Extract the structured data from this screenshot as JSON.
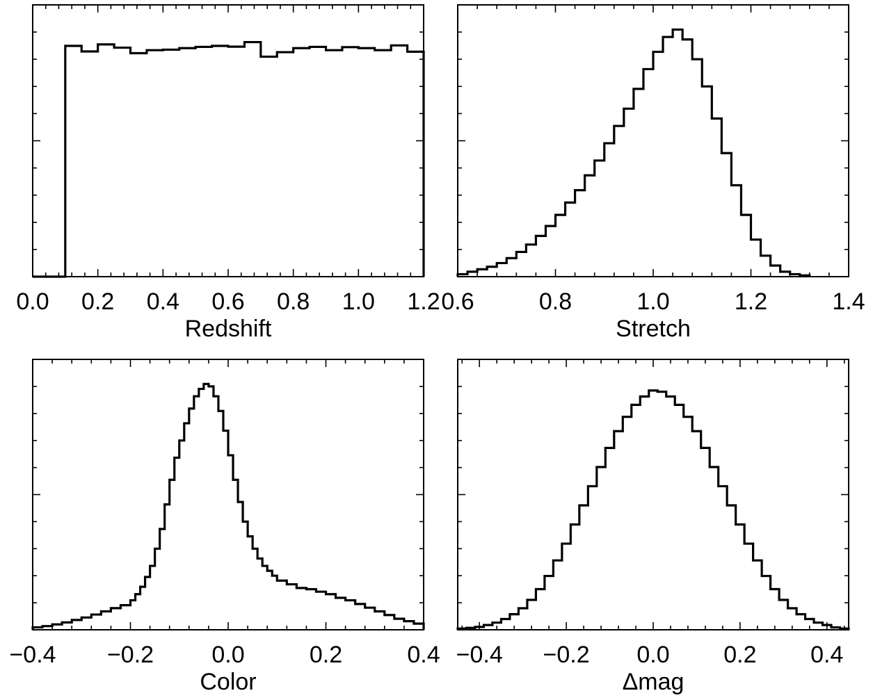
{
  "chart_data": [
    {
      "type": "histogram",
      "xlabel": "Redshift",
      "ylabel": "",
      "xlim": [
        0.0,
        1.2
      ],
      "xticks": [
        0.0,
        0.2,
        0.4,
        0.6,
        0.8,
        1.0,
        1.2
      ],
      "xtick_labels": [
        "0.0",
        "0.2",
        "0.4",
        "0.6",
        "0.8",
        "1.0",
        "1.2"
      ],
      "y_ticklabels_shown": false,
      "x_edges": [
        0.0,
        0.1,
        0.15,
        0.2,
        0.25,
        0.3,
        0.35,
        0.4,
        0.45,
        0.5,
        0.55,
        0.6,
        0.65,
        0.7,
        0.75,
        0.8,
        0.85,
        0.9,
        0.95,
        1.0,
        1.05,
        1.1,
        1.15,
        1.2
      ],
      "values": [
        0,
        0.917,
        0.895,
        0.923,
        0.91,
        0.888,
        0.9,
        0.902,
        0.908,
        0.913,
        0.917,
        0.914,
        0.932,
        0.874,
        0.892,
        0.908,
        0.913,
        0.9,
        0.912,
        0.908,
        0.9,
        0.919,
        0.894
      ]
    },
    {
      "type": "histogram",
      "xlabel": "Stretch",
      "ylabel": "",
      "xlim": [
        0.6,
        1.4
      ],
      "xticks": [
        0.6,
        0.8,
        1.0,
        1.2,
        1.4
      ],
      "xtick_labels": [
        "0.6",
        "0.8",
        "1.0",
        "1.2",
        "1.4"
      ],
      "y_ticklabels_shown": false,
      "x_edges": [
        0.6,
        0.62,
        0.64,
        0.66,
        0.68,
        0.7,
        0.72,
        0.74,
        0.76,
        0.78,
        0.8,
        0.82,
        0.84,
        0.86,
        0.88,
        0.9,
        0.92,
        0.94,
        0.96,
        0.98,
        1.0,
        1.02,
        1.04,
        1.06,
        1.08,
        1.1,
        1.12,
        1.14,
        1.16,
        1.18,
        1.2,
        1.22,
        1.24,
        1.26,
        1.28,
        1.3,
        1.32
      ],
      "values": [
        0.01,
        0.02,
        0.03,
        0.04,
        0.055,
        0.075,
        0.1,
        0.13,
        0.165,
        0.205,
        0.25,
        0.3,
        0.35,
        0.41,
        0.47,
        0.54,
        0.61,
        0.68,
        0.76,
        0.84,
        0.91,
        0.97,
        1.0,
        0.96,
        0.88,
        0.77,
        0.64,
        0.5,
        0.37,
        0.25,
        0.15,
        0.085,
        0.045,
        0.02,
        0.01,
        0.005
      ]
    },
    {
      "type": "histogram",
      "xlabel": "Color",
      "ylabel": "",
      "xlim": [
        -0.4,
        0.4
      ],
      "xticks": [
        -0.4,
        -0.2,
        0.0,
        0.2,
        0.4
      ],
      "xtick_labels": [
        "−0.4",
        "−0.2",
        "0.0",
        "0.2",
        "0.4"
      ],
      "y_ticklabels_shown": false,
      "x_edges": [
        -0.4,
        -0.38,
        -0.36,
        -0.34,
        -0.32,
        -0.3,
        -0.28,
        -0.26,
        -0.24,
        -0.22,
        -0.2,
        -0.19,
        -0.18,
        -0.17,
        -0.16,
        -0.15,
        -0.14,
        -0.13,
        -0.12,
        -0.11,
        -0.1,
        -0.09,
        -0.08,
        -0.07,
        -0.06,
        -0.05,
        -0.04,
        -0.03,
        -0.02,
        -0.01,
        0.0,
        0.01,
        0.02,
        0.03,
        0.04,
        0.05,
        0.06,
        0.07,
        0.08,
        0.09,
        0.1,
        0.12,
        0.14,
        0.16,
        0.18,
        0.2,
        0.22,
        0.24,
        0.26,
        0.28,
        0.3,
        0.32,
        0.34,
        0.36,
        0.38,
        0.4
      ],
      "values": [
        0.01,
        0.015,
        0.022,
        0.03,
        0.04,
        0.05,
        0.062,
        0.075,
        0.088,
        0.1,
        0.12,
        0.145,
        0.175,
        0.215,
        0.26,
        0.33,
        0.41,
        0.51,
        0.61,
        0.7,
        0.77,
        0.84,
        0.9,
        0.95,
        0.98,
        1.0,
        0.99,
        0.95,
        0.89,
        0.81,
        0.71,
        0.61,
        0.52,
        0.44,
        0.38,
        0.33,
        0.29,
        0.26,
        0.24,
        0.22,
        0.2,
        0.185,
        0.17,
        0.165,
        0.155,
        0.145,
        0.13,
        0.12,
        0.105,
        0.09,
        0.075,
        0.06,
        0.045,
        0.035,
        0.025
      ]
    },
    {
      "type": "histogram",
      "xlabel": "Δmag",
      "ylabel": "",
      "xlim": [
        -0.45,
        0.45
      ],
      "xticks": [
        -0.4,
        -0.2,
        0.0,
        0.2,
        0.4
      ],
      "xtick_labels": [
        "−0.4",
        "−0.2",
        "0.0",
        "0.2",
        "0.4"
      ],
      "y_ticklabels_shown": false,
      "x_edges": [
        -0.45,
        -0.43,
        -0.41,
        -0.39,
        -0.37,
        -0.35,
        -0.33,
        -0.31,
        -0.29,
        -0.27,
        -0.25,
        -0.23,
        -0.21,
        -0.19,
        -0.17,
        -0.15,
        -0.13,
        -0.11,
        -0.09,
        -0.07,
        -0.05,
        -0.03,
        -0.01,
        0.01,
        0.03,
        0.05,
        0.07,
        0.09,
        0.11,
        0.13,
        0.15,
        0.17,
        0.19,
        0.21,
        0.23,
        0.25,
        0.27,
        0.29,
        0.31,
        0.33,
        0.35,
        0.37,
        0.39,
        0.41,
        0.43,
        0.45
      ],
      "values": [
        0.005,
        0.008,
        0.012,
        0.02,
        0.03,
        0.045,
        0.065,
        0.09,
        0.125,
        0.17,
        0.225,
        0.29,
        0.36,
        0.44,
        0.52,
        0.6,
        0.68,
        0.76,
        0.83,
        0.89,
        0.94,
        0.975,
        1.0,
        0.995,
        0.975,
        0.94,
        0.89,
        0.83,
        0.76,
        0.68,
        0.6,
        0.52,
        0.44,
        0.36,
        0.29,
        0.225,
        0.17,
        0.125,
        0.09,
        0.065,
        0.045,
        0.03,
        0.02,
        0.01,
        0.005
      ]
    }
  ]
}
